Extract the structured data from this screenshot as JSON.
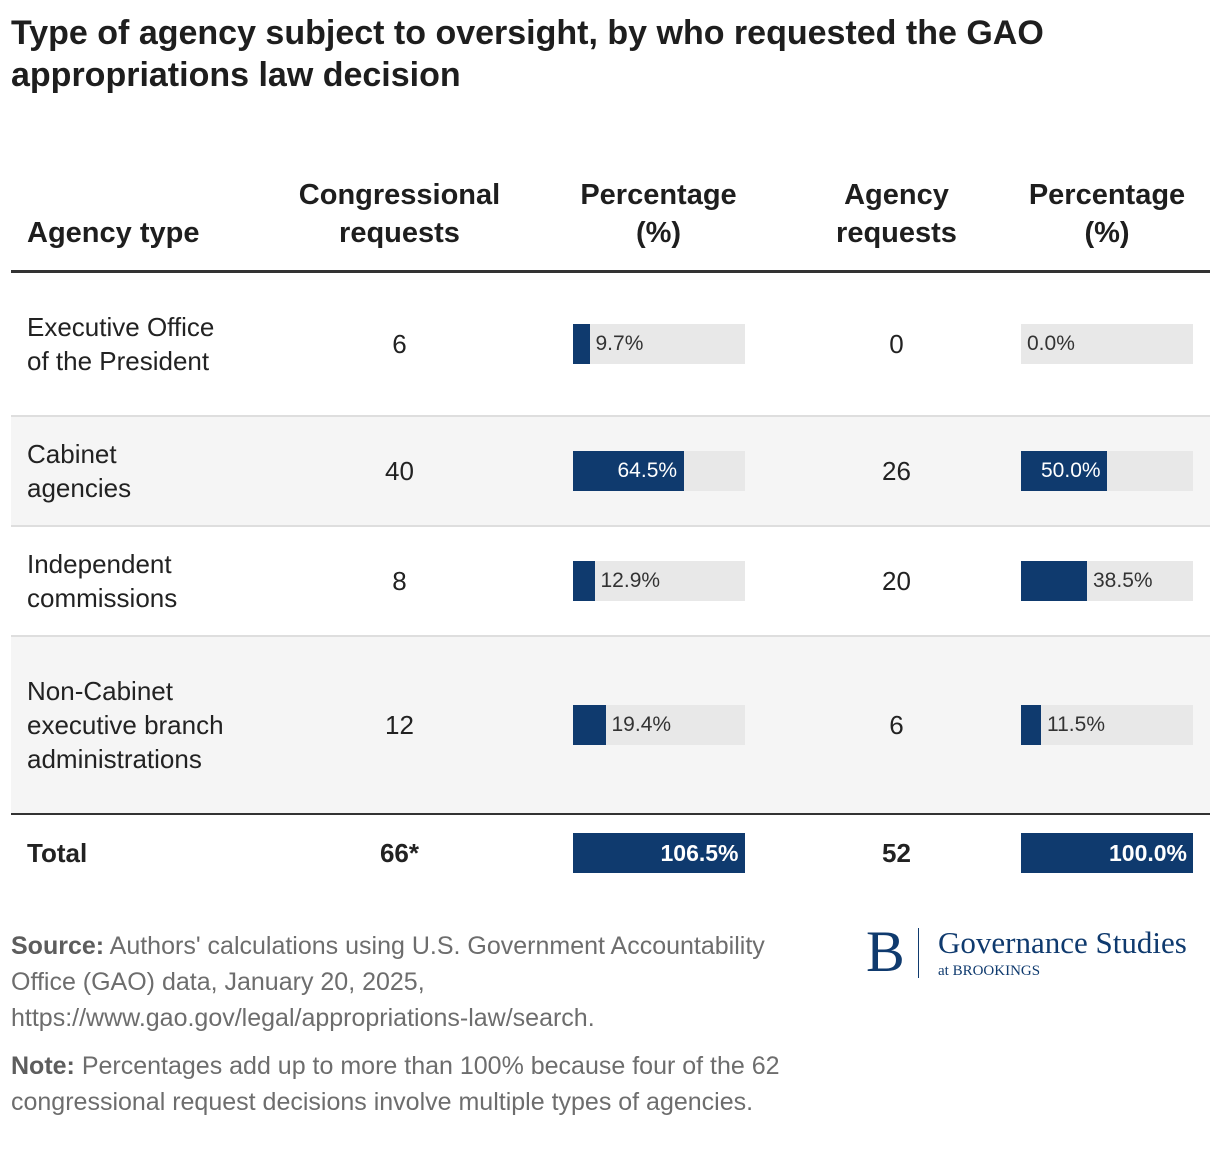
{
  "title": "Type of agency subject to oversight, by who requested the GAO appropriations law decision",
  "colors": {
    "bar_fill": "#0f3a6e",
    "bar_track": "#e8e8e8",
    "alt_row": "#f5f5f5"
  },
  "chart_data": {
    "type": "table",
    "title": "Type of agency subject to oversight, by who requested the GAO appropriations law decision",
    "columns": [
      "Agency type",
      "Congressional requests",
      "Percentage (%)",
      "Agency requests",
      "Percentage (%)"
    ],
    "rows": [
      {
        "agency_type": "Executive Office of the President",
        "congressional_requests": "6",
        "congressional_pct": 9.7,
        "congressional_pct_label": "9.7%",
        "agency_requests": "0",
        "agency_pct": 0.0,
        "agency_pct_label": "0.0%"
      },
      {
        "agency_type": "Cabinet agencies",
        "congressional_requests": "40",
        "congressional_pct": 64.5,
        "congressional_pct_label": "64.5%",
        "agency_requests": "26",
        "agency_pct": 50.0,
        "agency_pct_label": "50.0%"
      },
      {
        "agency_type": "Independent commissions",
        "congressional_requests": "8",
        "congressional_pct": 12.9,
        "congressional_pct_label": "12.9%",
        "agency_requests": "20",
        "agency_pct": 38.5,
        "agency_pct_label": "38.5%"
      },
      {
        "agency_type": "Non-Cabinet executive branch administrations",
        "congressional_requests": "12",
        "congressional_pct": 19.4,
        "congressional_pct_label": "19.4%",
        "agency_requests": "6",
        "agency_pct": 11.5,
        "agency_pct_label": "11.5%"
      }
    ],
    "total": {
      "label": "Total",
      "congressional_requests": "66*",
      "congressional_pct": 106.5,
      "congressional_pct_label": "106.5%",
      "agency_requests": "52",
      "agency_pct": 100.0,
      "agency_pct_label": "100.0%"
    },
    "bar_scale_max_pct": 100
  },
  "source": {
    "label": "Source:",
    "text": " Authors' calculations using U.S. Government Accountability Office (GAO) data, January 20, 2025, https://www.gao.gov/legal/appropriations-law/search."
  },
  "note": {
    "label": "Note:",
    "text": " Percentages add up to more than 100% because four of the 62 congressional request decisions involve multiple types of agencies."
  },
  "logo": {
    "letter": "B",
    "line1": "Governance Studies",
    "line2": "at BROOKINGS"
  }
}
